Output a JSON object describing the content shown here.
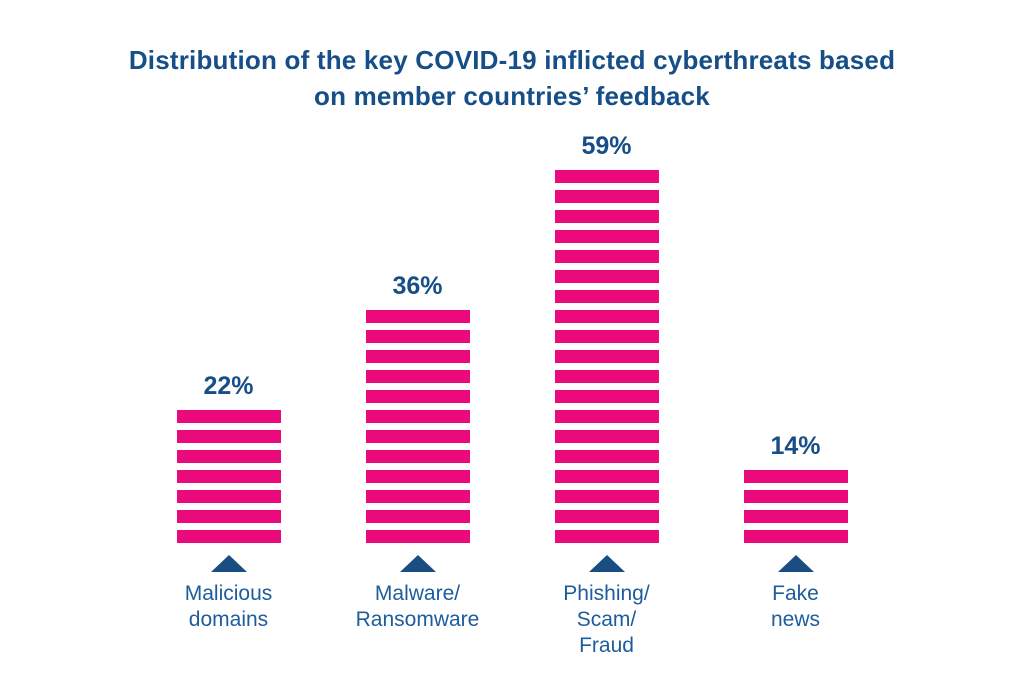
{
  "title": {
    "lines": [
      "Distribution of the key COVID-19 inflicted cyberthreats based",
      "on member countries’ feedback"
    ]
  },
  "chart_data": {
    "type": "bar",
    "title": "Distribution of the key COVID-19 inflicted cyberthreats based on member countries’ feedback",
    "categories": [
      "Malicious domains",
      "Malware/Ransomware",
      "Phishing/Scam/Fraud",
      "Fake news"
    ],
    "values": [
      22,
      36,
      59,
      14
    ],
    "unit": "%",
    "orientation": "vertical",
    "bar_style": "horizontal-striped",
    "legend": "none",
    "axes_visible": false,
    "bars": [
      {
        "value": 22,
        "value_label": "22%",
        "stripes": 7,
        "label_lines": [
          "Malicious",
          "domains"
        ]
      },
      {
        "value": 36,
        "value_label": "36%",
        "stripes": 12,
        "label_lines": [
          "Malware/",
          "Ransomware"
        ]
      },
      {
        "value": 59,
        "value_label": "59%",
        "stripes": 19,
        "label_lines": [
          "Phishing/",
          "Scam/",
          "Fraud"
        ]
      },
      {
        "value": 14,
        "value_label": "14%",
        "stripes": 4,
        "label_lines": [
          "Fake",
          "news"
        ]
      }
    ],
    "colors": {
      "stripe": "#EB0A7C",
      "value_text": "#164E87",
      "title_text": "#164E87",
      "label_text": "#1E5C9C",
      "triangle": "#1A4E82",
      "background": "#FFFFFF"
    }
  }
}
